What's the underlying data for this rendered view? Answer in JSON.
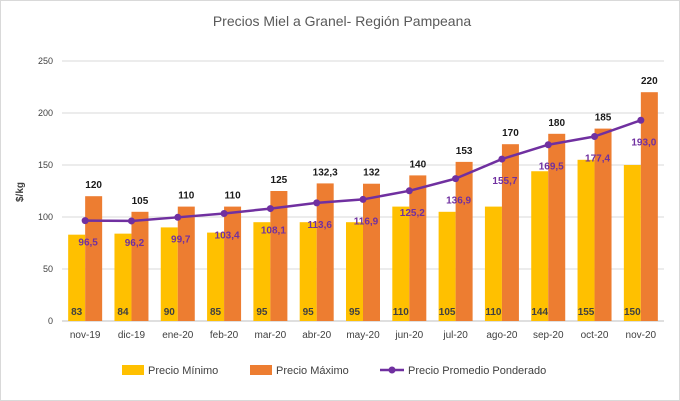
{
  "chart_data": {
    "type": "bar",
    "title": "Precios Miel a Granel- Región Pampeana",
    "ylabel": "$/kg",
    "xlabel": "",
    "ylim": [
      0,
      250
    ],
    "yticks": [
      0,
      50,
      100,
      150,
      200,
      250
    ],
    "grid": true,
    "legend_position": "bottom",
    "categories": [
      "nov-19",
      "dic-19",
      "ene-20",
      "feb-20",
      "mar-20",
      "abr-20",
      "may-20",
      "jun-20",
      "jul-20",
      "ago-20",
      "sep-20",
      "oct-20",
      "nov-20"
    ],
    "series": [
      {
        "name": "Precio Mínimo",
        "kind": "bar",
        "color": "#ffc000",
        "values": [
          83,
          84,
          90,
          85,
          95,
          95,
          95,
          110,
          105,
          110,
          144,
          155,
          150
        ],
        "labels": [
          "83",
          "84",
          "90",
          "85",
          "95",
          "95",
          "95",
          "110",
          "105",
          "110",
          "144",
          "155",
          "150"
        ]
      },
      {
        "name": "Precio Máximo",
        "kind": "bar",
        "color": "#ed7d31",
        "values": [
          120,
          105,
          110,
          110,
          125,
          132.3,
          132,
          140,
          153,
          170,
          180,
          185,
          220
        ],
        "labels": [
          "120",
          "105",
          "110",
          "110",
          "125",
          "132,3",
          "132",
          "140",
          "153",
          "170",
          "180",
          "185",
          "220"
        ]
      },
      {
        "name": "Precio Promedio Ponderado",
        "kind": "line",
        "color": "#7030a0",
        "values": [
          96.5,
          96.2,
          99.7,
          103.4,
          108.1,
          113.6,
          116.9,
          125.2,
          136.9,
          155.7,
          169.5,
          177.4,
          193.0
        ],
        "labels": [
          "96,5",
          "96,2",
          "99,7",
          "103,4",
          "108,1",
          "113,6",
          "116,9",
          "125,2",
          "136,9",
          "155,7",
          "169,5",
          "177,4",
          "193,0"
        ]
      }
    ]
  }
}
